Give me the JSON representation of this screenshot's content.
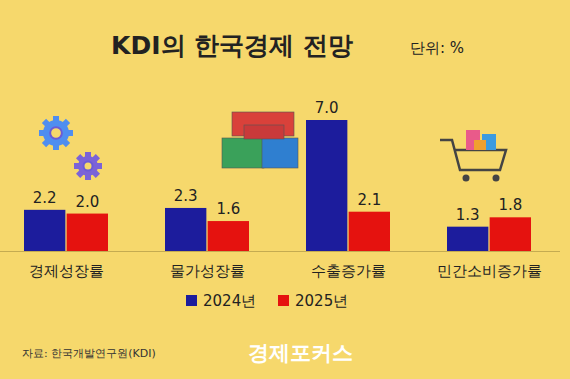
{
  "chart_data": {
    "type": "bar",
    "title": "KDI의 한국경제 전망",
    "unit": "단위: %",
    "source": "자료: 한국개발연구원(KDI)",
    "watermark": "경제포커스",
    "categories": [
      "경제성장률",
      "물가성장률",
      "수출증가률",
      "민간소비증가률"
    ],
    "series": [
      {
        "name": "2024년",
        "color": "#1c1c9c",
        "values": [
          2.2,
          2.3,
          7.0,
          1.3
        ],
        "value_labels": [
          "2.2",
          "2.3",
          "7.0",
          "1.3"
        ]
      },
      {
        "name": "2025년",
        "color": "#e5120f",
        "values": [
          2.0,
          1.6,
          2.1,
          1.8
        ],
        "value_labels": [
          "2.0",
          "1.6",
          "2.1",
          "1.8"
        ]
      }
    ],
    "ylim": [
      0,
      7
    ],
    "tick_labels": "x",
    "data_labels": true,
    "legend": "bottom"
  }
}
